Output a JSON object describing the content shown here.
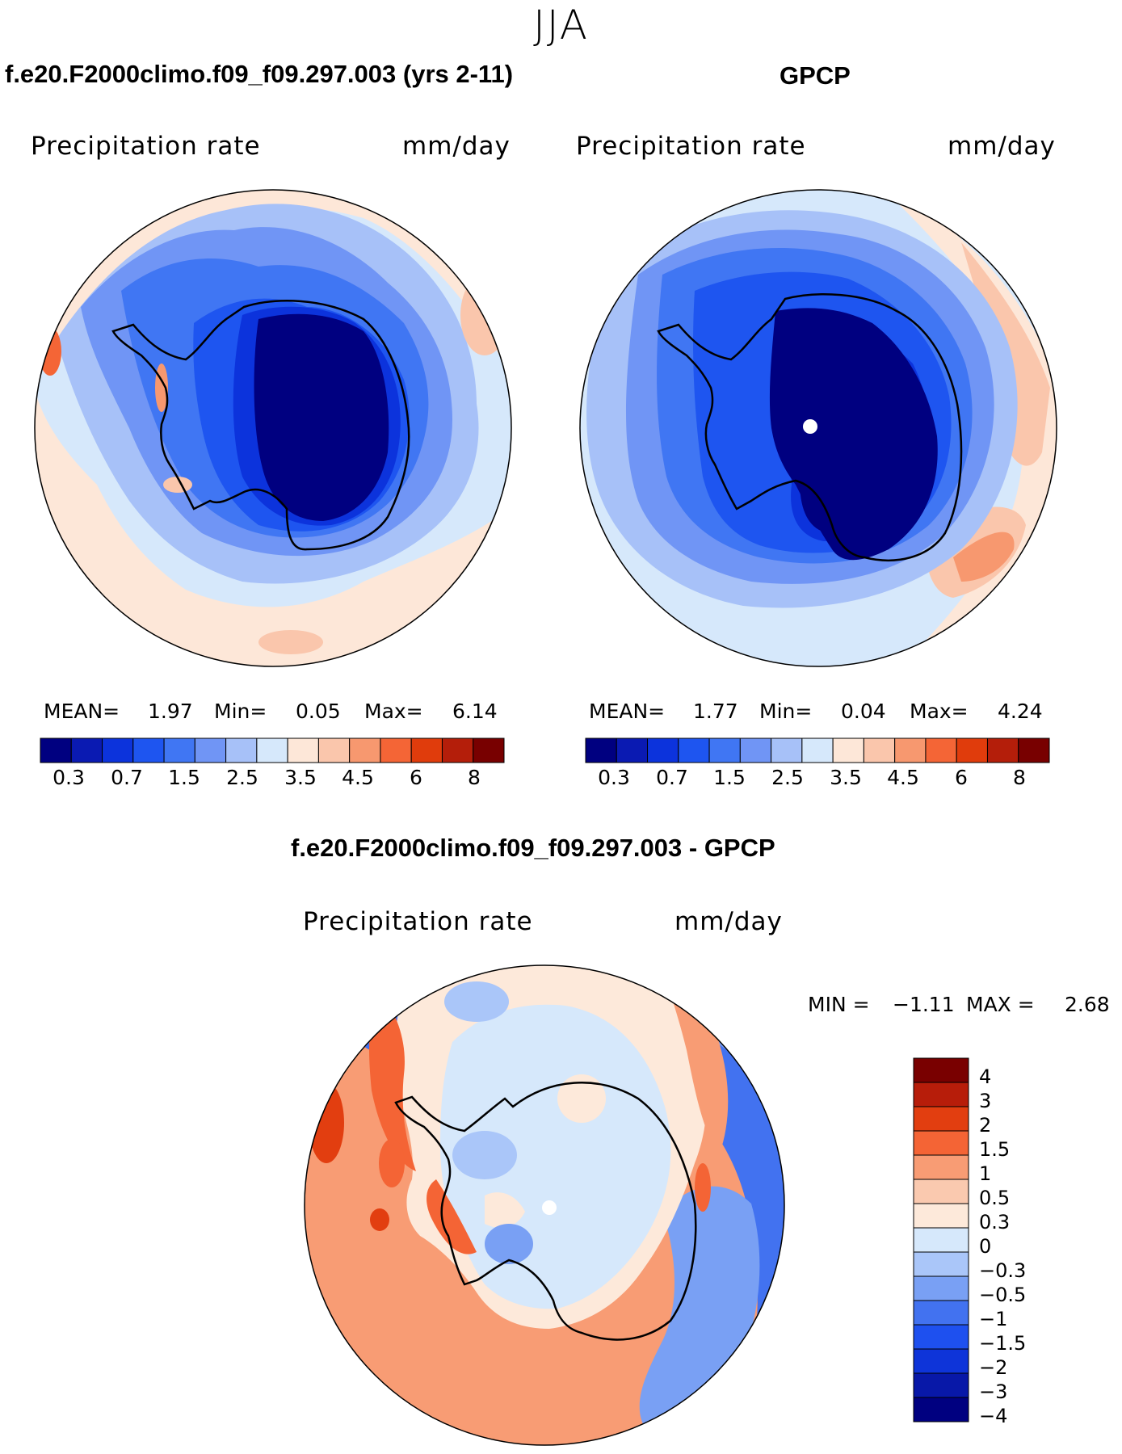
{
  "season": "JJA",
  "colors": {
    "abs_scale": [
      "#000080",
      "#0a1ab2",
      "#0c33dc",
      "#1e55f0",
      "#4076f3",
      "#7095f5",
      "#a7c1f8",
      "#d6e8fb",
      "#fde7d8",
      "#fac6ac",
      "#f7986f",
      "#f46536",
      "#e03c0c",
      "#b41e0a",
      "#780000"
    ],
    "diff_scale": [
      "#790000",
      "#b71d0a",
      "#e23e10",
      "#f46435",
      "#f89c74",
      "#fac9af",
      "#fde9da",
      "#d6e8fb",
      "#aac6f9",
      "#79a0f4",
      "#4272f0",
      "#1e50ef",
      "#0e34d9",
      "#0818a8",
      "#000080"
    ],
    "land_outline": "#000000"
  },
  "panels": {
    "model": {
      "title": "f.e20.F2000climo.f09_f09.297.003 (yrs 2-11)",
      "variable": "Precipitation rate",
      "units": "mm/day",
      "mean_label": "MEAN=",
      "mean": "1.97",
      "min_label": "Min=",
      "min": "0.05",
      "max_label": "Max=",
      "max": "6.14"
    },
    "obs": {
      "title": "GPCP",
      "variable": "Precipitation rate",
      "units": "mm/day",
      "mean_label": "MEAN=",
      "mean": "1.77",
      "min_label": "Min=",
      "min": "0.04",
      "max_label": "Max=",
      "max": "4.24"
    },
    "diff": {
      "title": "f.e20.F2000climo.f09_f09.297.003 - GPCP",
      "variable": "Precipitation rate",
      "units": "mm/day",
      "min_label": "MIN =",
      "min": "−1.11",
      "max_label": "MAX =",
      "max": "2.68"
    }
  },
  "chart_data": [
    {
      "type": "heatmap",
      "projection": "south polar stereographic",
      "title": "f.e20.F2000climo.f09_f09.297.003 (yrs 2-11)",
      "variable": "Precipitation rate",
      "units": "mm/day",
      "mean": 1.97,
      "min": 0.05,
      "max": 6.14,
      "colorbar_ticks": [
        "0.3",
        "0.7",
        "1.5",
        "2.5",
        "3.5",
        "4.5",
        "6",
        "8"
      ],
      "contour_levels": [
        0.2,
        0.3,
        0.5,
        0.7,
        1,
        1.5,
        2,
        2.5,
        3,
        3.5,
        4,
        4.5,
        5,
        6,
        8
      ]
    },
    {
      "type": "heatmap",
      "projection": "south polar stereographic",
      "title": "GPCP",
      "variable": "Precipitation rate",
      "units": "mm/day",
      "mean": 1.77,
      "min": 0.04,
      "max": 4.24,
      "colorbar_ticks": [
        "0.3",
        "0.7",
        "1.5",
        "2.5",
        "3.5",
        "4.5",
        "6",
        "8"
      ],
      "contour_levels": [
        0.2,
        0.3,
        0.5,
        0.7,
        1,
        1.5,
        2,
        2.5,
        3,
        3.5,
        4,
        4.5,
        5,
        6,
        8
      ]
    },
    {
      "type": "heatmap",
      "projection": "south polar stereographic",
      "title": "f.e20.F2000climo.f09_f09.297.003 - GPCP",
      "variable": "Precipitation rate",
      "units": "mm/day",
      "min": -1.11,
      "max": 2.68,
      "colorbar_ticks": [
        "4",
        "3",
        "2",
        "1.5",
        "1",
        "0.5",
        "0.3",
        "0",
        "−0.3",
        "−0.5",
        "−1",
        "−1.5",
        "−2",
        "−3",
        "−4"
      ]
    }
  ]
}
